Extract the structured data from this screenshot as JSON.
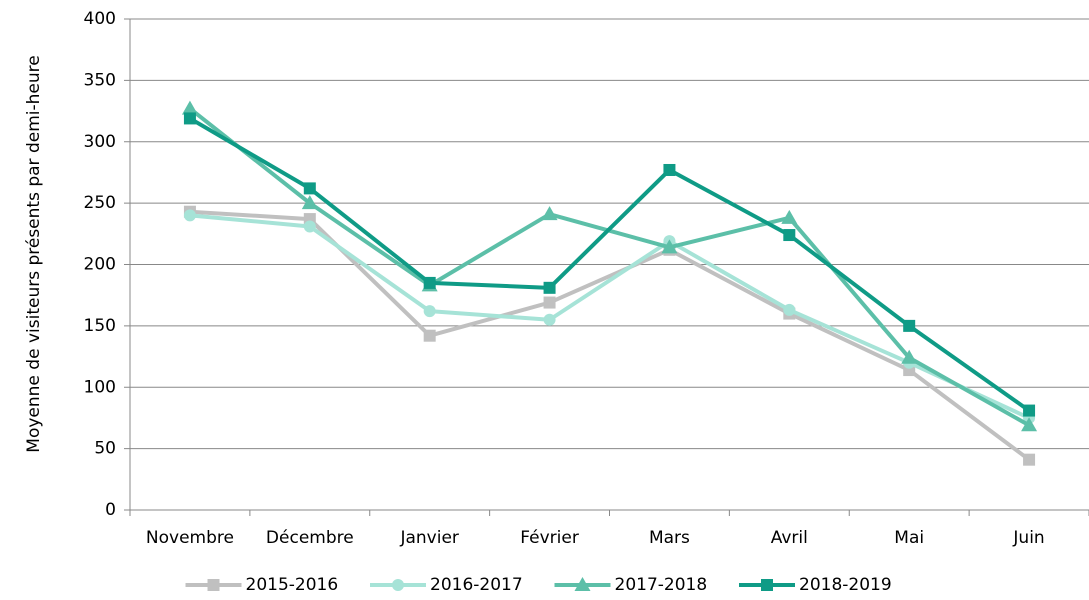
{
  "chart_data": {
    "type": "line",
    "ylabel": "Moyenne de visiteurs présents par demi-heure",
    "categories": [
      "Novembre",
      "Décembre",
      "Janvier",
      "Février",
      "Mars",
      "Avril",
      "Mai",
      "Juin"
    ],
    "series": [
      {
        "name": "2015-2016",
        "color": "#c0c0c0",
        "marker": "square",
        "values": [
          243,
          237,
          142,
          169,
          212,
          160,
          114,
          41
        ]
      },
      {
        "name": "2016-2017",
        "color": "#a6e3d7",
        "marker": "circle",
        "values": [
          240,
          231,
          162,
          155,
          219,
          163,
          120,
          75
        ]
      },
      {
        "name": "2017-2018",
        "color": "#5cbfa8",
        "marker": "triangle",
        "values": [
          327,
          250,
          183,
          241,
          214,
          238,
          124,
          69
        ]
      },
      {
        "name": "2018-2019",
        "color": "#0f9b86",
        "marker": "square",
        "values": [
          319,
          262,
          185,
          181,
          277,
          224,
          150,
          81
        ]
      }
    ],
    "ylim": [
      0,
      400
    ],
    "yticks": [
      0,
      50,
      100,
      150,
      200,
      250,
      300,
      350,
      400
    ],
    "grid": true,
    "legend": "bottom"
  }
}
